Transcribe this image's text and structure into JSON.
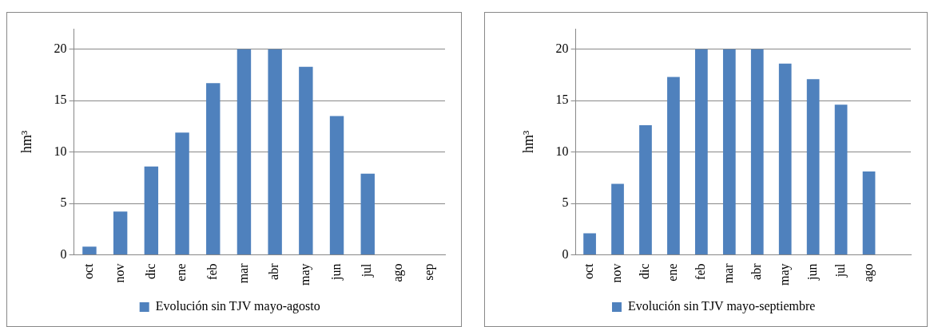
{
  "chart_data": [
    {
      "type": "bar",
      "ylabel": "hm³",
      "categories": [
        "oct",
        "nov",
        "dic",
        "ene",
        "feb",
        "mar",
        "abr",
        "may",
        "jun",
        "jul",
        "ago",
        "sep"
      ],
      "series": [
        {
          "name": "Evolución sin TJV mayo-agosto",
          "color": "#4f81bd",
          "values": [
            0.8,
            4.2,
            8.6,
            11.9,
            16.7,
            20,
            20,
            18.3,
            13.5,
            7.9,
            null,
            null
          ]
        }
      ],
      "ylim": [
        0,
        22
      ],
      "yticks": [
        0,
        5,
        10,
        15,
        20
      ],
      "grid": "y",
      "legend": "bottom"
    },
    {
      "type": "bar",
      "ylabel": "hm³",
      "categories": [
        "oct",
        "nov",
        "dic",
        "ene",
        "feb",
        "mar",
        "abr",
        "may",
        "jun",
        "jul",
        "ago",
        null
      ],
      "series": [
        {
          "name": "Evolución sin TJV mayo-septiembre",
          "color": "#4f81bd",
          "values": [
            2.1,
            6.9,
            12.6,
            17.3,
            20,
            20,
            20,
            18.6,
            17.1,
            14.6,
            8.1,
            null
          ]
        }
      ],
      "ylim": [
        0,
        22
      ],
      "yticks": [
        0,
        5,
        10,
        15,
        20
      ],
      "grid": "y",
      "legend": "bottom"
    }
  ]
}
